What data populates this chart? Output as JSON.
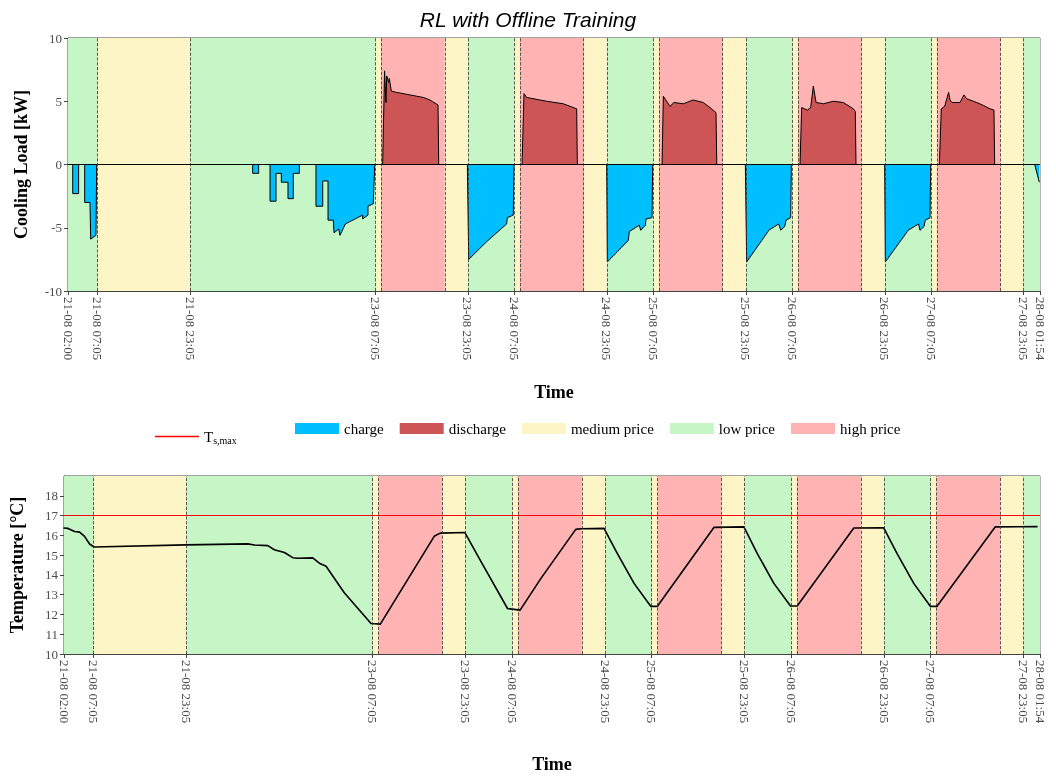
{
  "chart_data": [
    {
      "type": "area",
      "title": "RL with Offline Training",
      "xlabel": "Time",
      "ylabel": "Cooling Load [kW]",
      "xlim": [
        "--08-21T02:00",
        "--08-28T01:54"
      ],
      "ylim": [
        -10,
        10
      ],
      "yticks": [
        -10,
        -5,
        0,
        5,
        10
      ],
      "xticks": [
        {
          "value": "--08-21T02:00",
          "label": "21-08 02:00"
        },
        {
          "value": "--08-21T07:05",
          "label": "21-08 07:05"
        },
        {
          "value": "--08-21T23:05",
          "label": "21-08 23:05"
        },
        {
          "value": "--08-23T07:05",
          "label": "23-08 07:05"
        },
        {
          "value": "--08-23T23:05",
          "label": "23-08 23:05"
        },
        {
          "value": "--08-24T07:05",
          "label": "24-08 07:05"
        },
        {
          "value": "--08-24T23:05",
          "label": "24-08 23:05"
        },
        {
          "value": "--08-25T07:05",
          "label": "25-08 07:05"
        },
        {
          "value": "--08-25T23:05",
          "label": "25-08 23:05"
        },
        {
          "value": "--08-26T07:05",
          "label": "26-08 07:05"
        },
        {
          "value": "--08-26T23:05",
          "label": "26-08 23:05"
        },
        {
          "value": "--08-27T07:05",
          "label": "27-08 07:05"
        },
        {
          "value": "--08-27T23:05",
          "label": "27-08 23:05"
        },
        {
          "value": "--08-28T01:54",
          "label": "28-08 01:54"
        }
      ],
      "grid": true,
      "legend": "bottom",
      "series": [
        {
          "name": "charge",
          "color": "#00bfff",
          "x": [
            "--08-21T02:00",
            "--08-21T02:49",
            "--08-21T02:49",
            "--08-21T03:50",
            "--08-21T03:50",
            "--08-21T04:53",
            "--08-21T04:53",
            "--08-21T05:48",
            "--08-21T05:55",
            "--08-21T06:50",
            "--08-21T06:57",
            "--08-22T09:54",
            "--08-22T09:54",
            "--08-22T10:56",
            "--08-22T10:56",
            "--08-22T12:54",
            "--08-22T12:54",
            "--08-22T13:56",
            "--08-22T13:56",
            "--08-22T14:51",
            "--08-22T14:51",
            "--08-22T16:00",
            "--08-22T16:00",
            "--08-22T16:55",
            "--08-22T16:55",
            "--08-22T17:58",
            "--08-22T17:58",
            "--08-22T20:50",
            "--08-22T20:50",
            "--08-22T22:00",
            "--08-22T22:00",
            "--08-22T22:55",
            "--08-22T22:55",
            "--08-22T23:50",
            "--08-22T23:57",
            "--08-23T00:46",
            "--08-23T00:59",
            "--08-23T01:54",
            "--08-23T04:54",
            "--08-23T04:54",
            "--08-23T05:49",
            "--08-23T05:49",
            "--08-23T06:44",
            "--08-23T06:59",
            "--08-23T22:59",
            "--08-23T23:13",
            "--08-24T02:19",
            "--08-24T05:46",
            "--08-24T05:53",
            "--08-24T06:55",
            "--08-24T07:02",
            "--08-24T23:03",
            "--08-24T23:10",
            "--08-25T02:47",
            "--08-25T02:58",
            "--08-25T04:41",
            "--08-25T04:55",
            "--08-25T05:44",
            "--08-25T05:51",
            "--08-25T06:53",
            "--08-25T07:00",
            "--08-25T23:00",
            "--08-25T23:14",
            "--08-26T02:55",
            "--08-26T03:02",
            "--08-26T04:46",
            "--08-26T05:07",
            "--08-26T05:48",
            "--08-26T06:02",
            "--08-26T06:50",
            "--08-26T06:57",
            "--08-26T23:04",
            "--08-26T23:11",
            "--08-27T02:59",
            "--08-27T03:06",
            "--08-27T04:56",
            "--08-27T05:10",
            "--08-27T05:52",
            "--08-27T06:05",
            "--08-27T06:54",
            "--08-27T07:01",
            "--08-28T00:59",
            "--08-28T01:47"
          ],
          "values": [
            0,
            0,
            -2.3,
            -2.3,
            0,
            0,
            -3.0,
            -3.0,
            -5.9,
            -5.6,
            0,
            0,
            -0.7,
            -0.7,
            0,
            0,
            -2.9,
            -2.9,
            -0.7,
            -0.7,
            -1.4,
            -1.4,
            -2.7,
            -2.7,
            -0.7,
            -0.7,
            0,
            0,
            -3.3,
            -3.3,
            -1.3,
            -1.3,
            -4.4,
            -4.4,
            -5.4,
            -5.1,
            -5.6,
            -4.7,
            -4.0,
            -4.3,
            -4.0,
            -3.3,
            -3.1,
            0,
            0,
            -7.5,
            -6.1,
            -4.7,
            -4.2,
            -4.0,
            0,
            0,
            -7.7,
            -6.0,
            -5.3,
            -4.8,
            -5.2,
            -4.8,
            -4.3,
            -4.2,
            0,
            0,
            -7.7,
            -5.3,
            -5.2,
            -4.7,
            -5.2,
            -4.9,
            -4.4,
            -4.2,
            0,
            0,
            -7.7,
            -5.3,
            -5.2,
            -4.7,
            -5.2,
            -4.9,
            -4.4,
            -4.2,
            0,
            0,
            -1.4
          ]
        },
        {
          "name": "discharge",
          "color": "#cd5555",
          "x": [
            "--08-21T02:00",
            "--08-23T08:21",
            "--08-23T08:41",
            "--08-23T08:56",
            "--08-23T09:03",
            "--08-23T09:24",
            "--08-23T09:30",
            "--08-23T09:51",
            "--08-23T10:46",
            "--08-23T13:05",
            "--08-23T15:23",
            "--08-23T16:32",
            "--08-23T17:55",
            "--08-23T18:02",
            "--08-24T08:26",
            "--08-24T08:46",
            "--08-24T09:14",
            "--08-24T12:41",
            "--08-24T15:34",
            "--08-24T16:43",
            "--08-24T17:52",
            "--08-24T17:59",
            "--08-25T08:37",
            "--08-25T08:50",
            "--08-25T09:59",
            "--08-25T10:41",
            "--08-25T12:17",
            "--08-25T14:00",
            "--08-25T15:44",
            "--08-25T16:54",
            "--08-25T17:56",
            "--08-25T18:04",
            "--08-26T08:27",
            "--08-26T08:44",
            "--08-26T09:43",
            "--08-26T10:17",
            "--08-26T10:45",
            "--08-26T11:13",
            "--08-26T12:29",
            "--08-26T14:12",
            "--08-26T15:56",
            "--08-26T17:40",
            "--08-26T18:00",
            "--08-26T18:07",
            "--08-27T08:31",
            "--08-27T08:51",
            "--08-27T09:26",
            "--08-27T10:07",
            "--08-27T10:21",
            "--08-27T10:42",
            "--08-27T12:05",
            "--08-27T12:46",
            "--08-27T13:14",
            "--08-27T14:58",
            "--08-27T15:59",
            "--08-27T17:16",
            "--08-27T17:57",
            "--08-27T18:04",
            "--08-28T01:54"
          ],
          "values": [
            0,
            0,
            7.4,
            4.9,
            7.0,
            6.5,
            6.8,
            5.8,
            5.7,
            5.5,
            5.3,
            5.1,
            4.7,
            0,
            0,
            5.6,
            5.3,
            5.0,
            4.8,
            4.6,
            4.4,
            0,
            0,
            5.4,
            4.6,
            4.9,
            4.8,
            5.1,
            4.9,
            4.5,
            4.1,
            0,
            0,
            4.5,
            4.3,
            4.5,
            6.2,
            4.9,
            4.8,
            5.0,
            4.9,
            4.4,
            4.2,
            0,
            0,
            4.4,
            4.6,
            5.7,
            5.1,
            4.9,
            4.9,
            5.5,
            5.2,
            4.9,
            4.7,
            4.4,
            4.3,
            0,
            0
          ]
        }
      ],
      "bands": [
        {
          "axis": "x",
          "from": "--08-21T07:05",
          "to": "--08-21T23:05",
          "label": "medium price",
          "color": "#fef5c6"
        },
        {
          "axis": "x",
          "from": "--08-23T07:05",
          "to": "--08-23T08:05",
          "color": "#fef5c6"
        },
        {
          "axis": "x",
          "from": "--08-23T19:05",
          "to": "--08-23T23:05",
          "color": "#fef5c6"
        },
        {
          "axis": "x",
          "from": "--08-24T07:05",
          "to": "--08-24T08:05",
          "color": "#fef5c6"
        },
        {
          "axis": "x",
          "from": "--08-24T19:05",
          "to": "--08-24T23:05",
          "color": "#fef5c6"
        },
        {
          "axis": "x",
          "from": "--08-25T07:05",
          "to": "--08-25T08:05",
          "color": "#fef5c6"
        },
        {
          "axis": "x",
          "from": "--08-25T19:05",
          "to": "--08-25T23:05",
          "color": "#fef5c6"
        },
        {
          "axis": "x",
          "from": "--08-26T07:05",
          "to": "--08-26T08:05",
          "color": "#fef5c6"
        },
        {
          "axis": "x",
          "from": "--08-26T19:05",
          "to": "--08-26T23:05",
          "color": "#fef5c6"
        },
        {
          "axis": "x",
          "from": "--08-27T07:05",
          "to": "--08-27T08:05",
          "color": "#fef5c6"
        },
        {
          "axis": "x",
          "from": "--08-27T19:05",
          "to": "--08-27T23:05",
          "color": "#fef5c6"
        },
        {
          "axis": "x",
          "from": "--08-21T02:00",
          "to": "--08-21T07:05",
          "label": "low price",
          "color": "#c6f5c6"
        },
        {
          "axis": "x",
          "from": "--08-21T23:05",
          "to": "--08-23T07:05",
          "color": "#c6f5c6"
        },
        {
          "axis": "x",
          "from": "--08-23T23:05",
          "to": "--08-24T07:05",
          "color": "#c6f5c6"
        },
        {
          "axis": "x",
          "from": "--08-24T23:05",
          "to": "--08-25T07:05",
          "color": "#c6f5c6"
        },
        {
          "axis": "x",
          "from": "--08-25T23:05",
          "to": "--08-26T07:05",
          "color": "#c6f5c6"
        },
        {
          "axis": "x",
          "from": "--08-26T23:05",
          "to": "--08-27T07:05",
          "color": "#c6f5c6"
        },
        {
          "axis": "x",
          "from": "--08-27T23:05",
          "to": "--08-28T01:54",
          "color": "#c6f5c6"
        },
        {
          "axis": "x",
          "from": "--08-23T08:05",
          "to": "--08-23T19:05",
          "label": "high price",
          "color": "#ffb3b3"
        },
        {
          "axis": "x",
          "from": "--08-24T08:05",
          "to": "--08-24T19:05",
          "color": "#ffb3b3"
        },
        {
          "axis": "x",
          "from": "--08-25T08:05",
          "to": "--08-25T19:05",
          "color": "#ffb3b3"
        },
        {
          "axis": "x",
          "from": "--08-26T08:05",
          "to": "--08-26T19:05",
          "color": "#ffb3b3"
        },
        {
          "axis": "x",
          "from": "--08-27T08:05",
          "to": "--08-27T19:05",
          "color": "#ffb3b3"
        }
      ],
      "ref_lines": [
        {
          "axis": "x",
          "value": "--08-21T07:05",
          "line_style": "dashed",
          "color": "#333333"
        },
        {
          "axis": "x",
          "value": "--08-21T23:05",
          "line_style": "dashed",
          "color": "#333333"
        },
        {
          "axis": "x",
          "value": "--08-23T07:05",
          "line_style": "dashed",
          "color": "#333333"
        },
        {
          "axis": "x",
          "value": "--08-23T08:05",
          "line_style": "dashed",
          "color": "#333333"
        },
        {
          "axis": "x",
          "value": "--08-23T19:05",
          "line_style": "dashed",
          "color": "#333333"
        },
        {
          "axis": "x",
          "value": "--08-23T23:05",
          "line_style": "dashed",
          "color": "#333333"
        },
        {
          "axis": "x",
          "value": "--08-24T07:05",
          "line_style": "dashed",
          "color": "#333333"
        },
        {
          "axis": "x",
          "value": "--08-24T08:05",
          "line_style": "dashed",
          "color": "#333333"
        },
        {
          "axis": "x",
          "value": "--08-24T19:05",
          "line_style": "dashed",
          "color": "#333333"
        },
        {
          "axis": "x",
          "value": "--08-24T23:05",
          "line_style": "dashed",
          "color": "#333333"
        },
        {
          "axis": "x",
          "value": "--08-25T07:05",
          "line_style": "dashed",
          "color": "#333333"
        },
        {
          "axis": "x",
          "value": "--08-25T08:05",
          "line_style": "dashed",
          "color": "#333333"
        },
        {
          "axis": "x",
          "value": "--08-25T19:05",
          "line_style": "dashed",
          "color": "#333333"
        },
        {
          "axis": "x",
          "value": "--08-25T23:05",
          "line_style": "dashed",
          "color": "#333333"
        },
        {
          "axis": "x",
          "value": "--08-26T07:05",
          "line_style": "dashed",
          "color": "#333333"
        },
        {
          "axis": "x",
          "value": "--08-26T08:05",
          "line_style": "dashed",
          "color": "#333333"
        },
        {
          "axis": "x",
          "value": "--08-26T19:05",
          "line_style": "dashed",
          "color": "#333333"
        },
        {
          "axis": "x",
          "value": "--08-26T23:05",
          "line_style": "dashed",
          "color": "#333333"
        },
        {
          "axis": "x",
          "value": "--08-27T07:05",
          "line_style": "dashed",
          "color": "#333333"
        },
        {
          "axis": "x",
          "value": "--08-27T08:05",
          "line_style": "dashed",
          "color": "#333333"
        },
        {
          "axis": "x",
          "value": "--08-27T19:05",
          "line_style": "dashed",
          "color": "#333333"
        },
        {
          "axis": "x",
          "value": "--08-27T23:05",
          "line_style": "dashed",
          "color": "#333333"
        }
      ]
    },
    {
      "type": "line",
      "xlabel": "Time",
      "ylabel": "Temperature [°C]",
      "xlim": [
        "--08-21T02:00",
        "--08-28T01:54"
      ],
      "ylim": [
        10,
        19
      ],
      "yticks": [
        10,
        11,
        12,
        13,
        14,
        15,
        16,
        17,
        18
      ],
      "xticks": [
        {
          "value": "--08-21T02:00",
          "label": "21-08 02:00"
        },
        {
          "value": "--08-21T07:05",
          "label": "21-08 07:05"
        },
        {
          "value": "--08-21T23:05",
          "label": "21-08 23:05"
        },
        {
          "value": "--08-23T07:05",
          "label": "23-08 07:05"
        },
        {
          "value": "--08-23T23:05",
          "label": "23-08 23:05"
        },
        {
          "value": "--08-24T07:05",
          "label": "24-08 07:05"
        },
        {
          "value": "--08-24T23:05",
          "label": "24-08 23:05"
        },
        {
          "value": "--08-25T07:05",
          "label": "25-08 07:05"
        },
        {
          "value": "--08-25T23:05",
          "label": "25-08 23:05"
        },
        {
          "value": "--08-26T07:05",
          "label": "26-08 07:05"
        },
        {
          "value": "--08-26T23:05",
          "label": "26-08 23:05"
        },
        {
          "value": "--08-27T07:05",
          "label": "27-08 07:05"
        },
        {
          "value": "--08-27T23:05",
          "label": "27-08 23:05"
        },
        {
          "value": "--08-28T01:54",
          "label": "28-08 01:54"
        }
      ],
      "grid": true,
      "legend": "top",
      "line_style": "solid",
      "series": [
        {
          "color": "#000000",
          "x": [
            "--08-21T02:00",
            "--08-21T02:41",
            "--08-21T03:50",
            "--08-21T04:41",
            "--08-21T05:32",
            "--08-21T06:24",
            "--08-21T07:10",
            "--08-21T23:01",
            "--08-22T09:37",
            "--08-22T10:46",
            "--08-22T13:04",
            "--08-22T14:11",
            "--08-22T15:55",
            "--08-22T17:21",
            "--08-22T18:13",
            "--08-22T20:47",
            "--08-22T21:56",
            "--08-22T23:05",
            "--08-23T02:13",
            "--08-23T06:49",
            "--08-23T08:25",
            "--08-23T17:41",
            "--08-23T18:43",
            "--08-23T22:58",
            "--08-24T01:43",
            "--08-24T06:18",
            "--08-24T08:28",
            "--08-24T12:01",
            "--08-24T18:02",
            "--08-24T18:54",
            "--08-24T22:54",
            "--08-25T01:12",
            "--08-25T04:04",
            "--08-25T06:56",
            "--08-25T08:05",
            "--08-25T17:48",
            "--08-25T22:58",
            "--08-26T01:16",
            "--08-26T04:07",
            "--08-26T06:59",
            "--08-26T08:08",
            "--08-26T17:52",
            "--08-26T23:01",
            "--08-27T01:19",
            "--08-27T04:11",
            "--08-27T07:02",
            "--08-27T08:11",
            "--08-27T18:13",
            "--08-28T01:23"
          ],
          "values": [
            16.37,
            16.35,
            16.19,
            16.16,
            15.95,
            15.56,
            15.41,
            15.52,
            15.57,
            15.51,
            15.48,
            15.27,
            15.13,
            14.87,
            14.84,
            14.86,
            14.59,
            14.44,
            13.1,
            11.54,
            11.51,
            15.95,
            16.11,
            16.14,
            14.68,
            12.3,
            12.22,
            13.81,
            16.3,
            16.33,
            16.35,
            15.08,
            13.57,
            12.41,
            12.41,
            16.4,
            16.43,
            15.08,
            13.57,
            12.43,
            12.43,
            16.37,
            16.38,
            15.08,
            13.57,
            12.41,
            12.41,
            16.43,
            16.44
          ]
        }
      ],
      "bands": [
        {
          "axis": "x",
          "from": "--08-21T07:05",
          "to": "--08-21T23:05",
          "color": "#fef5c6"
        },
        {
          "axis": "x",
          "from": "--08-23T07:05",
          "to": "--08-23T08:05",
          "color": "#fef5c6"
        },
        {
          "axis": "x",
          "from": "--08-23T19:05",
          "to": "--08-23T23:05",
          "color": "#fef5c6"
        },
        {
          "axis": "x",
          "from": "--08-24T07:05",
          "to": "--08-24T08:05",
          "color": "#fef5c6"
        },
        {
          "axis": "x",
          "from": "--08-24T19:05",
          "to": "--08-24T23:05",
          "color": "#fef5c6"
        },
        {
          "axis": "x",
          "from": "--08-25T07:05",
          "to": "--08-25T08:05",
          "color": "#fef5c6"
        },
        {
          "axis": "x",
          "from": "--08-25T19:05",
          "to": "--08-25T23:05",
          "color": "#fef5c6"
        },
        {
          "axis": "x",
          "from": "--08-26T07:05",
          "to": "--08-26T08:05",
          "color": "#fef5c6"
        },
        {
          "axis": "x",
          "from": "--08-26T19:05",
          "to": "--08-26T23:05",
          "color": "#fef5c6"
        },
        {
          "axis": "x",
          "from": "--08-27T07:05",
          "to": "--08-27T08:05",
          "color": "#fef5c6"
        },
        {
          "axis": "x",
          "from": "--08-27T19:05",
          "to": "--08-27T23:05",
          "color": "#fef5c6"
        },
        {
          "axis": "x",
          "from": "--08-21T02:00",
          "to": "--08-21T07:05",
          "color": "#c6f5c6"
        },
        {
          "axis": "x",
          "from": "--08-21T23:05",
          "to": "--08-23T07:05",
          "color": "#c6f5c6"
        },
        {
          "axis": "x",
          "from": "--08-23T23:05",
          "to": "--08-24T07:05",
          "color": "#c6f5c6"
        },
        {
          "axis": "x",
          "from": "--08-24T23:05",
          "to": "--08-25T07:05",
          "color": "#c6f5c6"
        },
        {
          "axis": "x",
          "from": "--08-25T23:05",
          "to": "--08-26T07:05",
          "color": "#c6f5c6"
        },
        {
          "axis": "x",
          "from": "--08-26T23:05",
          "to": "--08-27T07:05",
          "color": "#c6f5c6"
        },
        {
          "axis": "x",
          "from": "--08-27T23:05",
          "to": "--08-28T01:54",
          "color": "#c6f5c6"
        },
        {
          "axis": "x",
          "from": "--08-23T08:05",
          "to": "--08-23T19:05",
          "color": "#ffb3b3"
        },
        {
          "axis": "x",
          "from": "--08-24T08:05",
          "to": "--08-24T19:05",
          "color": "#ffb3b3"
        },
        {
          "axis": "x",
          "from": "--08-25T08:05",
          "to": "--08-25T19:05",
          "color": "#ffb3b3"
        },
        {
          "axis": "x",
          "from": "--08-26T08:05",
          "to": "--08-26T19:05",
          "color": "#ffb3b3"
        },
        {
          "axis": "x",
          "from": "--08-27T08:05",
          "to": "--08-27T19:05",
          "color": "#ffb3b3"
        }
      ],
      "ref_lines": [
        {
          "axis": "y",
          "value": 17,
          "label": "T$_{s,max}$",
          "color": "#ff0000",
          "line_style": "solid"
        },
        {
          "axis": "x",
          "value": "--08-21T07:05",
          "line_style": "dashed",
          "color": "#333333"
        },
        {
          "axis": "x",
          "value": "--08-21T23:05",
          "line_style": "dashed",
          "color": "#333333"
        },
        {
          "axis": "x",
          "value": "--08-23T07:05",
          "line_style": "dashed",
          "color": "#333333"
        },
        {
          "axis": "x",
          "value": "--08-23T08:05",
          "line_style": "dashed",
          "color": "#333333"
        },
        {
          "axis": "x",
          "value": "--08-23T19:05",
          "line_style": "dashed",
          "color": "#333333"
        },
        {
          "axis": "x",
          "value": "--08-23T23:05",
          "line_style": "dashed",
          "color": "#333333"
        },
        {
          "axis": "x",
          "value": "--08-24T07:05",
          "line_style": "dashed",
          "color": "#333333"
        },
        {
          "axis": "x",
          "value": "--08-24T08:05",
          "line_style": "dashed",
          "color": "#333333"
        },
        {
          "axis": "x",
          "value": "--08-24T19:05",
          "line_style": "dashed",
          "color": "#333333"
        },
        {
          "axis": "x",
          "value": "--08-24T23:05",
          "line_style": "dashed",
          "color": "#333333"
        },
        {
          "axis": "x",
          "value": "--08-25T07:05",
          "line_style": "dashed",
          "color": "#333333"
        },
        {
          "axis": "x",
          "value": "--08-25T08:05",
          "line_style": "dashed",
          "color": "#333333"
        },
        {
          "axis": "x",
          "value": "--08-25T19:05",
          "line_style": "dashed",
          "color": "#333333"
        },
        {
          "axis": "x",
          "value": "--08-25T23:05",
          "line_style": "dashed",
          "color": "#333333"
        },
        {
          "axis": "x",
          "value": "--08-26T07:05",
          "line_style": "dashed",
          "color": "#333333"
        },
        {
          "axis": "x",
          "value": "--08-26T08:05",
          "line_style": "dashed",
          "color": "#333333"
        },
        {
          "axis": "x",
          "value": "--08-26T19:05",
          "line_style": "dashed",
          "color": "#333333"
        },
        {
          "axis": "x",
          "value": "--08-26T23:05",
          "line_style": "dashed",
          "color": "#333333"
        },
        {
          "axis": "x",
          "value": "--08-27T07:05",
          "line_style": "dashed",
          "color": "#333333"
        },
        {
          "axis": "x",
          "value": "--08-27T08:05",
          "line_style": "dashed",
          "color": "#333333"
        },
        {
          "axis": "x",
          "value": "--08-27T19:05",
          "line_style": "dashed",
          "color": "#333333"
        },
        {
          "axis": "x",
          "value": "--08-27T23:05",
          "line_style": "dashed",
          "color": "#333333"
        }
      ]
    }
  ]
}
